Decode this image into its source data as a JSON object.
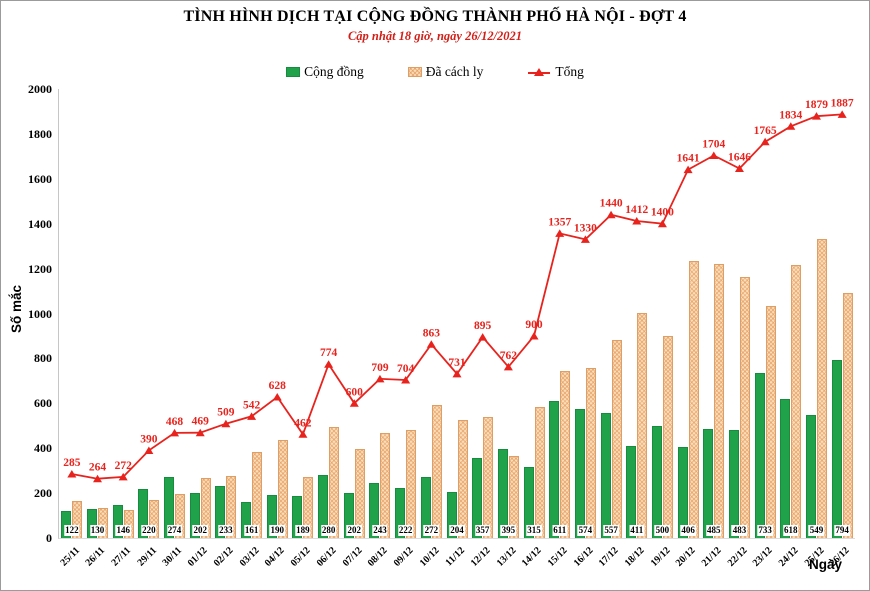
{
  "chart_data": {
    "type": "bar",
    "combo_with_line": true,
    "title": "TÌNH HÌNH DỊCH TẠI CỘNG ĐỒNG THÀNH PHỐ HÀ NỘI - ĐỢT 4",
    "subtitle": "Cập nhật 18 giờ, ngày 26/12/2021",
    "xlabel": "Ngày",
    "ylabel": "Số mắc",
    "ylim": [
      0,
      2000
    ],
    "ytick_step": 200,
    "grid": false,
    "legend_position": "top",
    "categories": [
      "25/11",
      "26/11",
      "27/11",
      "29/11",
      "30/11",
      "01/12",
      "02/12",
      "03/12",
      "04/12",
      "05/12",
      "06/12",
      "07/12",
      "08/12",
      "09/12",
      "10/12",
      "11/12",
      "12/12",
      "13/12",
      "14/12",
      "15/12",
      "16/12",
      "17/12",
      "18/12",
      "19/12",
      "20/12",
      "21/12",
      "22/12",
      "23/12",
      "24/12",
      "25/12",
      "26/12"
    ],
    "series": [
      {
        "name": "Cộng đồng",
        "type": "bar",
        "color": "#1fa24a",
        "labels_shown": true,
        "values": [
          122,
          130,
          146,
          220,
          274,
          202,
          233,
          161,
          190,
          189,
          280,
          202,
          243,
          222,
          272,
          204,
          357,
          395,
          315,
          611,
          574,
          557,
          411,
          500,
          406,
          485,
          483,
          733,
          618,
          549,
          794
        ]
      },
      {
        "name": "Đã cách ly",
        "type": "bar",
        "color": "#fbddb6",
        "pattern_color": "#de9e66",
        "labels_shown": false,
        "values": [
          163,
          134,
          126,
          170,
          194,
          267,
          276,
          381,
          438,
          273,
          494,
          398,
          466,
          482,
          591,
          527,
          538,
          367,
          585,
          746,
          756,
          883,
          1001,
          900,
          1235,
          1219,
          1163,
          1032,
          1216,
          1330,
          1093
        ]
      },
      {
        "name": "Tổng",
        "type": "line",
        "color": "#e8231d",
        "marker": "triangle",
        "labels_shown": true,
        "values": [
          285,
          264,
          272,
          390,
          468,
          469,
          509,
          542,
          628,
          462,
          774,
          600,
          709,
          704,
          863,
          731,
          895,
          762,
          900,
          1357,
          1330,
          1440,
          1412,
          1400,
          1641,
          1704,
          1646,
          1765,
          1834,
          1879,
          1887
        ]
      }
    ]
  }
}
